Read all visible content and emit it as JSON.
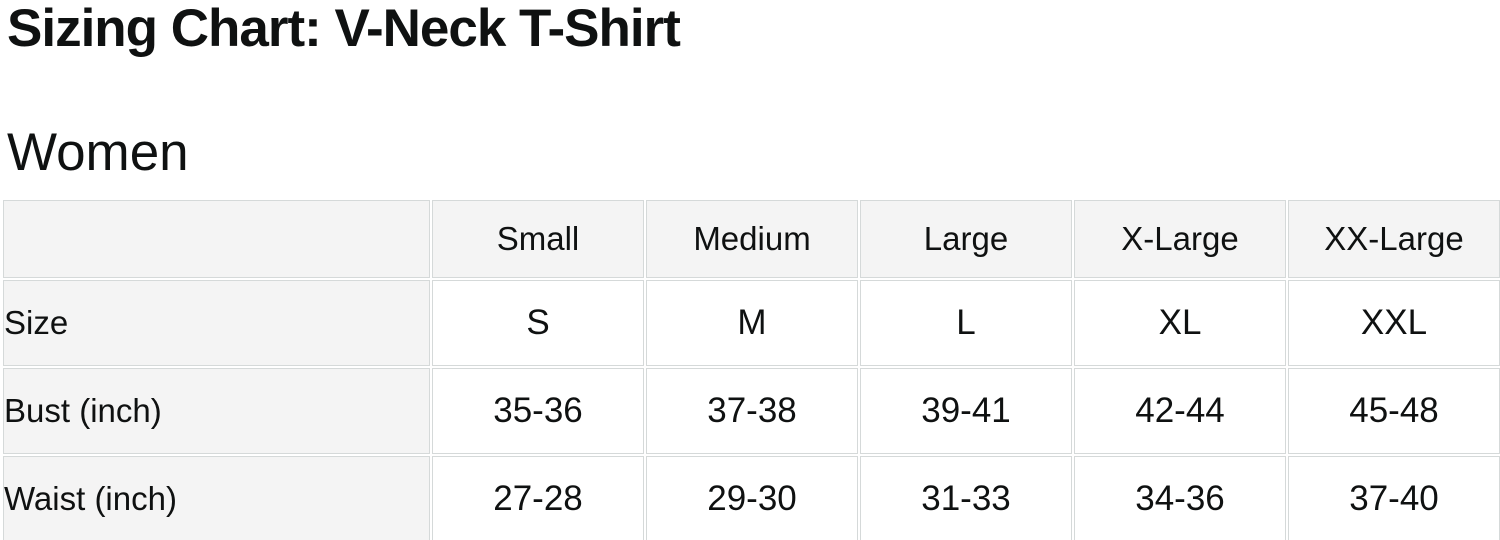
{
  "page": {
    "title": "Sizing Chart: V-Neck T-Shirt",
    "section_heading": "Women"
  },
  "size_table": {
    "corner_label": "",
    "columns": [
      "Small",
      "Medium",
      "Large",
      "X-Large",
      "XX-Large"
    ],
    "rows": [
      {
        "label": "Size",
        "values": [
          "S",
          "M",
          "L",
          "XL",
          "XXL"
        ]
      },
      {
        "label": "Bust (inch)",
        "values": [
          "35-36",
          "37-38",
          "39-41",
          "42-44",
          "45-48"
        ]
      },
      {
        "label": "Waist (inch)",
        "values": [
          "27-28",
          "29-30",
          "31-33",
          "34-36",
          "37-40"
        ]
      }
    ]
  },
  "colors": {
    "text": "#0f1111",
    "header_bg": "#f4f4f4",
    "border": "#d5d9d9",
    "background": "#ffffff"
  }
}
